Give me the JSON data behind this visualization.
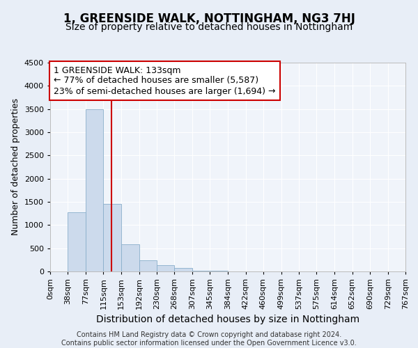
{
  "title": "1, GREENSIDE WALK, NOTTINGHAM, NG3 7HJ",
  "subtitle": "Size of property relative to detached houses in Nottingham",
  "xlabel": "Distribution of detached houses by size in Nottingham",
  "ylabel": "Number of detached properties",
  "bin_edges": [
    0,
    38,
    77,
    115,
    153,
    192,
    230,
    268,
    307,
    345,
    384,
    422,
    460,
    499,
    537,
    575,
    614,
    652,
    690,
    729,
    767
  ],
  "bar_heights": [
    0,
    1280,
    3500,
    1460,
    580,
    240,
    130,
    80,
    20,
    10,
    5,
    2,
    1,
    0,
    0,
    0,
    0,
    0,
    0,
    0
  ],
  "bar_color": "#ccdaec",
  "bar_edge_color": "#89aecb",
  "vline_x": 133,
  "vline_color": "#cc0000",
  "annotation_line1": "1 GREENSIDE WALK: 133sqm",
  "annotation_line2": "← 77% of detached houses are smaller (5,587)",
  "annotation_line3": "23% of semi-detached houses are larger (1,694) →",
  "annotation_box_color": "#ffffff",
  "annotation_box_edge_color": "#cc0000",
  "ylim": [
    0,
    4500
  ],
  "yticks": [
    0,
    500,
    1000,
    1500,
    2000,
    2500,
    3000,
    3500,
    4000,
    4500
  ],
  "bg_color": "#e8eef7",
  "plot_bg_color": "#f0f4fa",
  "grid_color": "#ffffff",
  "footer_text": "Contains HM Land Registry data © Crown copyright and database right 2024.\nContains public sector information licensed under the Open Government Licence v3.0.",
  "title_fontsize": 12,
  "subtitle_fontsize": 10,
  "xlabel_fontsize": 10,
  "ylabel_fontsize": 9,
  "tick_fontsize": 8,
  "annotation_fontsize": 9,
  "footer_fontsize": 7
}
